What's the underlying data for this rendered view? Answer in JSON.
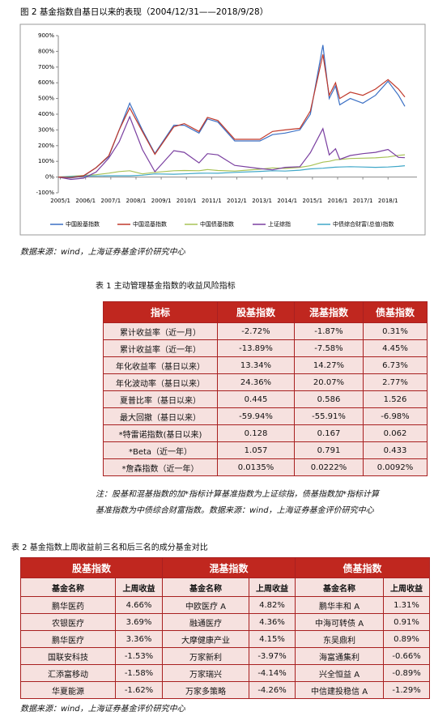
{
  "chart_data": {
    "type": "line",
    "title": "图 2  基金指数自基日以来的表现（2004/12/31——2018/9/28）",
    "x": [
      "2004/12",
      "2005/6",
      "2005/12",
      "2006/6",
      "2006/12",
      "2007/5",
      "2007/10",
      "2008/4",
      "2008/10",
      "2009/7",
      "2009/12",
      "2010/7",
      "2010/11",
      "2011/4",
      "2011/12",
      "2012/12",
      "2013/6",
      "2013/12",
      "2014/7",
      "2014/12",
      "2015/6",
      "2015/9",
      "2015/12",
      "2016/2",
      "2016/7",
      "2017/1",
      "2017/7",
      "2018/1",
      "2018/6",
      "2018/9"
    ],
    "series": [
      {
        "name": "中国股基指数",
        "color": "#3a6fc4",
        "values": [
          0,
          -5,
          5,
          60,
          130,
          300,
          470,
          300,
          150,
          330,
          330,
          280,
          370,
          350,
          230,
          230,
          270,
          280,
          300,
          400,
          840,
          500,
          580,
          460,
          500,
          470,
          520,
          610,
          520,
          450
        ]
      },
      {
        "name": "中国混基指数",
        "color": "#c0392b",
        "values": [
          0,
          -3,
          8,
          60,
          135,
          300,
          440,
          290,
          145,
          320,
          340,
          290,
          380,
          360,
          240,
          240,
          290,
          300,
          310,
          420,
          780,
          520,
          600,
          500,
          540,
          520,
          560,
          620,
          560,
          510
        ]
      },
      {
        "name": "中国债基指数",
        "color": "#a8c256",
        "values": [
          0,
          5,
          10,
          15,
          25,
          35,
          40,
          20,
          30,
          40,
          42,
          40,
          48,
          42,
          38,
          50,
          58,
          55,
          62,
          72,
          95,
          100,
          110,
          112,
          118,
          120,
          122,
          128,
          138,
          142
        ]
      },
      {
        "name": "上证综指",
        "color": "#7a3fa0",
        "values": [
          0,
          -15,
          -7,
          32,
          120,
          224,
          384,
          176,
          34,
          168,
          157,
          90,
          149,
          141,
          74,
          54,
          46,
          62,
          66,
          155,
          308,
          141,
          180,
          113,
          137,
          149,
          157,
          176,
          125,
          123
        ]
      },
      {
        "name": "中债综合财富(总值)指数",
        "color": "#3fa7c8",
        "values": [
          0,
          3,
          6,
          7,
          8,
          8,
          8,
          12,
          20,
          18,
          20,
          24,
          25,
          24,
          30,
          36,
          40,
          38,
          44,
          52,
          56,
          60,
          63,
          64,
          66,
          64,
          62,
          64,
          68,
          72
        ]
      }
    ],
    "xlim": [
      "2004/12",
      "2018/9"
    ],
    "xticks": [
      "2005/1",
      "2006/1",
      "2007/1",
      "2008/1",
      "2009/1",
      "2010/1",
      "2011/1",
      "2012/1",
      "2013/1",
      "2014/1",
      "2015/1",
      "2016/1",
      "2017/1",
      "2018/1"
    ],
    "ylim": [
      -100,
      900
    ],
    "yticks": [
      {
        "value": -100,
        "label": "-100%"
      },
      {
        "value": 0,
        "label": "0%"
      },
      {
        "value": 100,
        "label": "100%"
      },
      {
        "value": 200,
        "label": "200%"
      },
      {
        "value": 300,
        "label": "300%"
      },
      {
        "value": 400,
        "label": "400%"
      },
      {
        "value": 500,
        "label": "500%"
      },
      {
        "value": 600,
        "label": "600%"
      },
      {
        "value": 700,
        "label": "700%"
      },
      {
        "value": 800,
        "label": "800%"
      },
      {
        "value": 900,
        "label": "900%"
      }
    ],
    "legend": "bottom"
  },
  "source_1": "数据来源：wind，上海证券基金评价研究中心",
  "table1": {
    "title": "表 1  主动管理基金指数的收益风险指标",
    "header": [
      "指标",
      "股基指数",
      "混基指数",
      "债基指数"
    ],
    "rows": [
      [
        "累计收益率（近一月）",
        "-2.72%",
        "-1.87%",
        "0.31%"
      ],
      [
        "累计收益率（近一年）",
        "-13.89%",
        "-7.58%",
        "4.45%"
      ],
      [
        "年化收益率（基日以来）",
        "13.34%",
        "14.27%",
        "6.73%"
      ],
      [
        "年化波动率（基日以来）",
        "24.36%",
        "20.07%",
        "2.77%"
      ],
      [
        "夏普比率（基日以来）",
        "0.445",
        "0.586",
        "1.526"
      ],
      [
        "最大回撤（基日以来）",
        "-59.94%",
        "-55.91%",
        "-6.98%"
      ],
      [
        "*特雷诺指数(基日以来)",
        "0.128",
        "0.167",
        "0.062"
      ],
      [
        "*Beta（近一年）",
        "1.057",
        "0.791",
        "0.433"
      ],
      [
        "*詹森指数（近一年）",
        "0.0135%",
        "0.0222%",
        "0.0092%"
      ]
    ]
  },
  "note": [
    "注：股基和混基指数的加*指标计算基准指数为上证综指，债基指数加*指标计算",
    "基准指数为中债综合财富指数。数据来源：wind，上海证券基金评价研究中心"
  ],
  "table2": {
    "title": "表 2  基金指数上周收益前三名和后三名的成分基金对比",
    "groups": [
      "股基指数",
      "混基指数",
      "债基指数"
    ],
    "header": [
      "基金名称",
      "上周收益",
      "基金名称",
      "上周收益",
      "基金名称",
      "上周收益"
    ],
    "rows": [
      [
        "鹏华医药",
        "4.66%",
        "中欧医疗 A",
        "4.82%",
        "鹏华丰和 A",
        "1.31%"
      ],
      [
        "农银医疗",
        "3.69%",
        "融通医疗",
        "4.36%",
        "中海可转债 A",
        "0.91%"
      ],
      [
        "鹏华医疗",
        "3.36%",
        "大摩健康产业",
        "4.15%",
        "东吴鼎利",
        "0.89%"
      ],
      [
        "国联安科技",
        "-1.53%",
        "万家新利",
        "-3.97%",
        "海富通集利",
        "-0.66%"
      ],
      [
        "汇添富移动",
        "-1.58%",
        "万家瑞兴",
        "-4.14%",
        "兴全恒益 A",
        "-0.89%"
      ],
      [
        "华夏能源",
        "-1.62%",
        "万家多策略",
        "-4.26%",
        "中信建投稳信 A",
        "-1.29%"
      ]
    ]
  },
  "source_2": "数据来源：wind，上海证券基金评价研究中心"
}
